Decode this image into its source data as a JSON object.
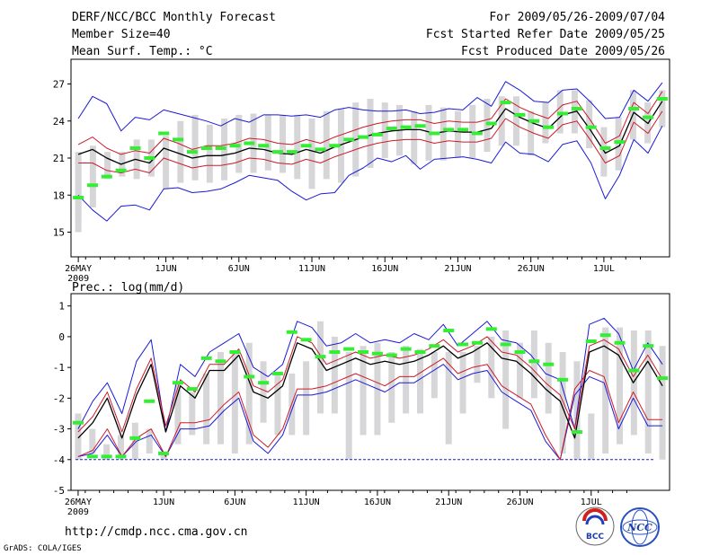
{
  "header": {
    "title": "DERF/NCC/BCC Monthly Forecast",
    "member_size": "Member Size=40",
    "variable1": "Mean Surf. Temp.: °C",
    "forecast_period": "For 2009/05/26-2009/07/04",
    "fcst_started": "Fcst Started Refer Date 2009/05/25",
    "fcst_produced": "Fcst Produced Date 2009/05/26"
  },
  "footer": {
    "url": "http://cmdp.ncc.cma.gov.cn",
    "grads": "GrADS: COLA/IGES",
    "logo_bcc": "BCC",
    "logo_ncc": "NCC"
  },
  "colors": {
    "ens_mean": "#000000",
    "spread": "#cc1b2b",
    "extreme": "#1a1ad6",
    "box": "#d6d6d8",
    "median": "#33ee33",
    "floor": "#1a1ad6"
  },
  "chart_data": [
    {
      "type": "line",
      "title": "Mean Surf. Temp.: °C",
      "ylim": [
        13,
        29
      ],
      "yticks": [
        15,
        18,
        21,
        24,
        27
      ],
      "xlim": [
        0,
        40
      ],
      "xticks": [
        {
          "day": 1,
          "label": "26MAY",
          "sub": "2009"
        },
        {
          "day": 7,
          "label": "1JUN"
        },
        {
          "day": 12,
          "label": "6JUN"
        },
        {
          "day": 17,
          "label": "11JUN"
        },
        {
          "day": 22,
          "label": "16JUN"
        },
        {
          "day": 27,
          "label": "21JUN"
        },
        {
          "day": 32,
          "label": "26JUN"
        },
        {
          "day": 37,
          "label": "1JUL"
        }
      ],
      "box_low": [
        16,
        17,
        19.3,
        19.5,
        19.3,
        19.5,
        18.5,
        19,
        19.2,
        19,
        19.2,
        19.8,
        19.8,
        20,
        19.8,
        19.3,
        18.5,
        19.3,
        19,
        19.5,
        20.2,
        21,
        21.2,
        20.5,
        20.8,
        20.8,
        21,
        21,
        21.5,
        22,
        22,
        21.2,
        22.2,
        23,
        23,
        21.8,
        19.5,
        20,
        22.5,
        22.2,
        23.5
      ],
      "box_high": [
        21,
        22,
        21.5,
        21.5,
        22.5,
        22.5,
        22.8,
        24,
        24.5,
        23.7,
        24.2,
        24.5,
        24.6,
        24.5,
        24.5,
        24.5,
        24.2,
        24.8,
        25,
        25.5,
        25.8,
        25.5,
        25.3,
        24.8,
        25.3,
        25.1,
        24.8,
        25.3,
        25.8,
        26,
        26,
        24.8,
        25.5,
        26.5,
        26.5,
        25.7,
        23.5,
        24.3,
        26.5,
        25.5,
        26.5
      ],
      "extra_bars": [
        [
          0.5,
          15.0,
          21.5
        ]
      ],
      "median": [
        17.8,
        18.8,
        19.5,
        20,
        21.8,
        21,
        23,
        22.5,
        21.5,
        21.8,
        21.8,
        22,
        22.2,
        22,
        21.5,
        21.5,
        22,
        21.7,
        22,
        22.5,
        22.7,
        22.9,
        23.4,
        23.5,
        23.6,
        23,
        23.3,
        23.3,
        23,
        23.8,
        25.5,
        24.5,
        24,
        23.5,
        24.6,
        25,
        23.5,
        21.8,
        22.3,
        25,
        24.3,
        25.8
      ],
      "ens_mean": [
        21.3,
        21.7,
        21.0,
        20.5,
        20.9,
        20.6,
        21.8,
        21.4,
        21.0,
        21.2,
        21.2,
        21.4,
        21.8,
        21.7,
        21.4,
        21.3,
        21.7,
        21.4,
        21.9,
        22.3,
        22.7,
        23.0,
        23.2,
        23.3,
        23.3,
        23.0,
        23.2,
        23.1,
        23.1,
        23.4,
        25.0,
        24.3,
        23.8,
        23.4,
        24.5,
        24.8,
        23.2,
        21.4,
        22.0,
        24.7,
        23.8,
        25.6
      ],
      "spread_upper": [
        22.1,
        22.7,
        21.8,
        21.3,
        21.6,
        21.4,
        22.6,
        22.2,
        21.7,
        22.0,
        22.0,
        22.2,
        22.6,
        22.5,
        22.2,
        22.1,
        22.5,
        22.2,
        22.7,
        23.1,
        23.5,
        23.8,
        24.0,
        24.1,
        24.1,
        23.8,
        24.0,
        23.9,
        23.9,
        24.2,
        25.8,
        25.1,
        24.6,
        24.2,
        25.3,
        25.6,
        24.0,
        22.2,
        22.8,
        25.5,
        24.6,
        26.4
      ],
      "spread_lower": [
        20.6,
        20.6,
        20.0,
        19.8,
        20.1,
        19.8,
        21.0,
        20.6,
        20.2,
        20.4,
        20.4,
        20.6,
        21.0,
        20.9,
        20.6,
        20.5,
        20.9,
        20.6,
        21.1,
        21.5,
        21.9,
        22.2,
        22.4,
        22.5,
        22.5,
        22.2,
        22.4,
        22.3,
        22.3,
        22.6,
        24.2,
        23.5,
        23.0,
        22.6,
        23.7,
        24.0,
        22.4,
        20.6,
        21.2,
        23.9,
        23.0,
        24.8
      ],
      "max_line": [
        24.2,
        26.0,
        25.4,
        23.2,
        24.3,
        24.1,
        24.9,
        24.6,
        24.3,
        24.0,
        23.6,
        24.2,
        23.9,
        24.5,
        24.5,
        24.4,
        24.5,
        24.3,
        24.9,
        25.1,
        24.9,
        24.8,
        24.8,
        24.9,
        24.6,
        24.7,
        25.0,
        24.9,
        25.9,
        25.2,
        27.2,
        26.5,
        25.6,
        25.5,
        26.5,
        26.6,
        25.5,
        24.2,
        24.3,
        26.5,
        25.6,
        27.1
      ],
      "min_line": [
        18.0,
        16.8,
        15.9,
        17.1,
        17.2,
        16.8,
        18.5,
        18.6,
        18.2,
        18.3,
        18.5,
        19.0,
        19.6,
        19.4,
        19.2,
        18.3,
        17.6,
        18.1,
        18.2,
        19.6,
        20.2,
        21.0,
        20.7,
        21.2,
        20.1,
        20.9,
        21.0,
        21.1,
        20.9,
        20.6,
        22.3,
        21.4,
        21.3,
        20.7,
        22.1,
        22.4,
        20.6,
        17.7,
        19.6,
        22.5,
        21.4,
        23.6
      ]
    },
    {
      "type": "line",
      "title": "Prec.: log(mm/d)",
      "ylim": [
        -5,
        1.4
      ],
      "yticks": [
        -5,
        -4,
        -3,
        -2,
        -1,
        0,
        1
      ],
      "xlim": [
        0,
        40
      ],
      "xticks": [
        {
          "day": 1,
          "label": "26MAY",
          "sub": "2009"
        },
        {
          "day": 7,
          "label": "1JUN"
        },
        {
          "day": 12,
          "label": "6JUN"
        },
        {
          "day": 17,
          "label": "11JUN"
        },
        {
          "day": 22,
          "label": "16JUN"
        },
        {
          "day": 27,
          "label": "21JUN"
        },
        {
          "day": 32,
          "label": "26JUN"
        },
        {
          "day": 37,
          "label": "1JUL"
        }
      ],
      "floor": -4,
      "box_low": [
        -4,
        -3.8,
        -4,
        -4,
        -4,
        -3.8,
        -4,
        -3.5,
        -3.2,
        -3.5,
        -3.5,
        -3.8,
        -3.5,
        -2.8,
        -3.2,
        -3.2,
        -3.2,
        -2.5,
        -2.5,
        -4,
        -3.2,
        -3.2,
        -2.8,
        -2.5,
        -2.5,
        -2,
        -3.5,
        -2.5,
        -1.5,
        -2,
        -3,
        -2,
        -2,
        -2.5,
        -3.8,
        -4,
        -4,
        -3.8,
        -3.5,
        -3.2,
        -3.8,
        -4
      ],
      "box_high": [
        -2.5,
        -3,
        -3.5,
        -3.2,
        -2.8,
        -3,
        -3.8,
        -1.5,
        -1.8,
        -1.2,
        -0.5,
        -0.5,
        -0.2,
        -0.8,
        -1.2,
        -1.2,
        -0.8,
        0.5,
        0,
        -0.5,
        -0.3,
        -0.2,
        -0.5,
        -0.3,
        -0.4,
        -0.5,
        -0.5,
        -0.5,
        -0.3,
        0,
        0.2,
        -0.2,
        0.2,
        -0.2,
        -0.5,
        -0.8,
        -2.5,
        0.3,
        0.3,
        0.2,
        0.2,
        -0.3
      ],
      "median": [
        -2.8,
        -3.9,
        -3.9,
        -3.9,
        -3.3,
        -2.1,
        -3.8,
        -1.5,
        -1.7,
        -0.7,
        -0.8,
        -0.5,
        -1.3,
        -1.5,
        -1.2,
        0.15,
        -0.1,
        -0.65,
        -0.5,
        -0.4,
        -0.5,
        -0.55,
        -0.6,
        -0.4,
        -0.5,
        -0.3,
        0.2,
        -0.25,
        -0.2,
        0.25,
        -0.25,
        -0.5,
        -0.8,
        -0.9,
        -1.4,
        -3.1,
        -0.15,
        0.05,
        -0.2,
        -1.1,
        -0.3,
        -1.35
      ],
      "ens_mean": [
        -3.3,
        -2.8,
        -2.0,
        -3.3,
        -1.9,
        -0.9,
        -3.1,
        -1.6,
        -2.0,
        -1.1,
        -1.1,
        -0.6,
        -1.8,
        -2.0,
        -1.6,
        -0.2,
        -0.4,
        -1.1,
        -0.9,
        -0.7,
        -0.9,
        -0.8,
        -0.9,
        -0.8,
        -0.6,
        -0.3,
        -0.7,
        -0.5,
        -0.2,
        -0.7,
        -0.8,
        -1.2,
        -1.7,
        -2.1,
        -3.3,
        -0.5,
        -0.3,
        -0.6,
        -1.5,
        -0.8,
        -1.6
      ],
      "spread_upper": [
        -3.1,
        -2.6,
        -1.8,
        -3.1,
        -1.7,
        -0.7,
        -2.9,
        -1.4,
        -1.8,
        -0.9,
        -0.9,
        -0.4,
        -1.6,
        -1.8,
        -1.4,
        0.0,
        -0.2,
        -0.9,
        -0.7,
        -0.5,
        -0.7,
        -0.6,
        -0.7,
        -0.6,
        -0.4,
        -0.1,
        -0.5,
        -0.3,
        0.0,
        -0.5,
        -0.6,
        -1.0,
        -1.5,
        -1.9,
        -3.0,
        -0.3,
        -0.1,
        -0.4,
        -1.3,
        -0.6,
        -1.4
      ],
      "spread_lower": [
        -3.9,
        -3.7,
        -3.0,
        -3.9,
        -3.3,
        -3.0,
        -3.9,
        -2.8,
        -2.8,
        -2.7,
        -2.2,
        -1.8,
        -3.2,
        -3.6,
        -3.0,
        -1.7,
        -1.7,
        -1.6,
        -1.4,
        -1.2,
        -1.4,
        -1.6,
        -1.3,
        -1.3,
        -1.0,
        -0.7,
        -1.2,
        -1.0,
        -0.9,
        -1.6,
        -1.9,
        -2.2,
        -3.2,
        -4.0,
        -1.7,
        -1.1,
        -1.3,
        -2.8,
        -1.8,
        -2.7,
        -2.7
      ],
      "max_line": [
        -3.0,
        -2.1,
        -1.5,
        -2.5,
        -0.8,
        -0.1,
        -3.1,
        -0.9,
        -1.3,
        -0.5,
        -0.2,
        0.1,
        -1.0,
        -1.3,
        -0.9,
        0.5,
        0.3,
        -0.3,
        -0.2,
        0.1,
        -0.2,
        -0.1,
        -0.2,
        0.1,
        -0.1,
        0.4,
        -0.3,
        0.1,
        0.5,
        -0.1,
        -0.2,
        -0.6,
        -1.2,
        -1.4,
        -3.0,
        0.4,
        0.6,
        0.1,
        -1.1,
        -0.2,
        -0.9
      ],
      "min_line": [
        -3.9,
        -3.8,
        -3.2,
        -3.9,
        -3.4,
        -3.2,
        -3.9,
        -3.0,
        -3.0,
        -2.9,
        -2.4,
        -2.0,
        -3.4,
        -3.8,
        -3.2,
        -1.9,
        -1.9,
        -1.8,
        -1.6,
        -1.4,
        -1.6,
        -1.8,
        -1.5,
        -1.5,
        -1.2,
        -0.9,
        -1.4,
        -1.2,
        -1.1,
        -1.8,
        -2.1,
        -2.4,
        -3.4,
        -4.0,
        -1.9,
        -1.3,
        -1.5,
        -3.0,
        -2.0,
        -2.9,
        -2.9
      ]
    }
  ]
}
